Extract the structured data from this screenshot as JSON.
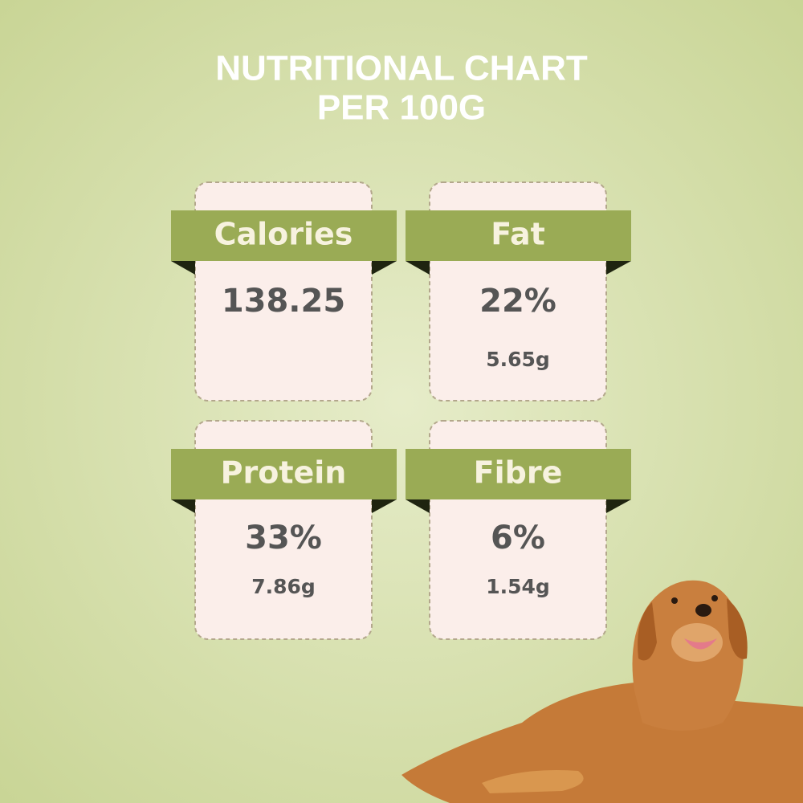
{
  "header": {
    "title": [
      "NUTRITIONAL CHART",
      "PER 100G"
    ]
  },
  "cards": [
    {
      "label": "Calories",
      "value": "138.25",
      "detail": null
    },
    {
      "label": "Fat",
      "value": "22%",
      "detail": "5.65g"
    },
    {
      "label": "Protein",
      "value": "33%",
      "detail": "7.86g"
    },
    {
      "label": "Fibre",
      "value": "6%",
      "detail": "1.54g"
    }
  ]
}
